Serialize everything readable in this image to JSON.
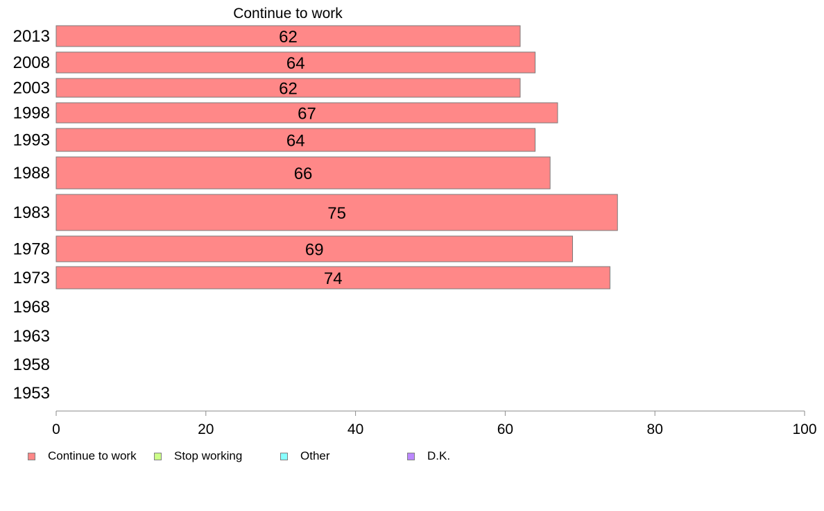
{
  "chart_data": {
    "type": "bar",
    "orientation": "horizontal",
    "title": "Continue to work",
    "categories": [
      "2013",
      "2008",
      "2003",
      "1998",
      "1993",
      "1988",
      "1983",
      "1978",
      "1973",
      "1968",
      "1963",
      "1958",
      "1953"
    ],
    "series": [
      {
        "name": "Continue to work",
        "color": "#ff8888",
        "values": [
          62,
          64,
          62,
          67,
          64,
          66,
          75,
          69,
          74,
          null,
          null,
          null,
          null
        ]
      }
    ],
    "data_labels": [
      "62",
      "64",
      "62",
      "67",
      "64",
      "66",
      "75",
      "69",
      "74",
      "",
      "",
      "",
      ""
    ],
    "xlim": [
      0,
      100
    ],
    "xticks": [
      "0",
      "20",
      "40",
      "60",
      "80",
      "100"
    ],
    "xlabel": "",
    "ylabel": "",
    "grid": false,
    "legend_position": "bottom"
  },
  "legend": [
    {
      "label": "Continue to work",
      "color": "#ff8888"
    },
    {
      "label": "Stop working",
      "color": "#ccff88"
    },
    {
      "label": "Other",
      "color": "#88ffff"
    },
    {
      "label": "D.K.",
      "color": "#bb88ff"
    }
  ]
}
